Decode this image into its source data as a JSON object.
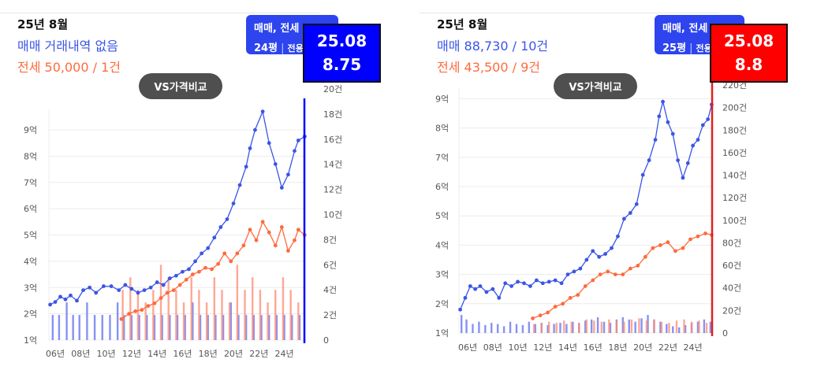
{
  "colors": {
    "trade": "#3b55e6",
    "trade_bar": "#5f6ef0",
    "jeonse": "#ff6a3d",
    "jeonse_bar": "#ff8a70",
    "grid": "#ececec"
  },
  "left_panel": {
    "period": "25년 8월",
    "trade_summary": "매매 거래내역 없음",
    "jeonse_summary": "전세 50,000 / 1건",
    "compare_button": "VS가격비교",
    "type_filter": {
      "line1": "매매, 전세",
      "size": "24평",
      "sep": "|",
      "area": "전용"
    },
    "tooltip": {
      "date": "25.08",
      "value": "8.75",
      "bg": "#0000ff",
      "line": "#0000ff"
    }
  },
  "right_panel": {
    "period": "25년 8월",
    "trade_summary": "매매 88,730 / 10건",
    "jeonse_summary": "전세 43,500 / 9건",
    "compare_button": "VS가격비교",
    "type_filter": {
      "line1": "매매, 전세",
      "size": "25평",
      "sep": "|",
      "area": "전용"
    },
    "tooltip": {
      "date": "25.08",
      "value": "8.8",
      "bg": "#ff0000",
      "line": "#e02020"
    }
  },
  "chart_data": [
    {
      "type": "line",
      "title": "",
      "x_ticks": [
        "06년",
        "08년",
        "10년",
        "12년",
        "14년",
        "16년",
        "18년",
        "20년",
        "22년",
        "24년"
      ],
      "xlim": [
        2005.5,
        2025.7
      ],
      "y_ticks": [
        "1억",
        "2억",
        "3억",
        "4억",
        "5억",
        "6억",
        "7억",
        "8억",
        "9억"
      ],
      "ylim": [
        1,
        9.6
      ],
      "y2_ticks": [
        "0",
        "2건",
        "4건",
        "6건",
        "8건",
        "10건",
        "12건",
        "14건",
        "16건",
        "18건",
        "20건"
      ],
      "y2lim": [
        0,
        20
      ],
      "series": [
        {
          "name": "매매",
          "kind": "line",
          "x": [
            2005.6,
            2006.0,
            2006.4,
            2006.8,
            2007.2,
            2007.7,
            2008.2,
            2008.7,
            2009.2,
            2009.8,
            2010.4,
            2011.0,
            2011.5,
            2012.0,
            2012.5,
            2013.0,
            2013.5,
            2014.0,
            2014.5,
            2015.0,
            2015.5,
            2016.0,
            2016.5,
            2017.0,
            2017.5,
            2018.0,
            2018.5,
            2019.0,
            2019.5,
            2020.0,
            2020.5,
            2021.0,
            2021.3,
            2021.7,
            2022.3,
            2022.8,
            2023.3,
            2023.8,
            2024.3,
            2024.8,
            2025.1,
            2025.6
          ],
          "y": [
            2.35,
            2.45,
            2.65,
            2.55,
            2.7,
            2.5,
            2.9,
            3.0,
            2.8,
            3.05,
            3.05,
            2.9,
            3.1,
            2.95,
            2.8,
            2.9,
            3.0,
            3.2,
            3.1,
            3.35,
            3.45,
            3.6,
            3.7,
            4.0,
            4.3,
            4.5,
            4.9,
            5.3,
            5.6,
            6.2,
            6.9,
            7.6,
            8.3,
            9.0,
            9.7,
            8.5,
            7.7,
            6.8,
            7.3,
            8.2,
            8.6,
            8.75
          ]
        },
        {
          "name": "전세",
          "kind": "line",
          "x": [
            2011.2,
            2011.8,
            2012.3,
            2012.8,
            2013.3,
            2013.8,
            2014.3,
            2014.8,
            2015.3,
            2015.8,
            2016.3,
            2016.8,
            2017.3,
            2017.8,
            2018.3,
            2018.8,
            2019.3,
            2019.8,
            2020.3,
            2020.8,
            2021.3,
            2021.8,
            2022.3,
            2022.8,
            2023.3,
            2023.8,
            2024.3,
            2024.8,
            2025.1,
            2025.6
          ],
          "y": [
            1.8,
            2.0,
            2.1,
            2.15,
            2.3,
            2.4,
            2.6,
            2.8,
            2.9,
            3.1,
            3.3,
            3.5,
            3.6,
            3.75,
            3.7,
            3.9,
            4.3,
            4.0,
            4.3,
            4.6,
            5.2,
            4.8,
            5.5,
            5.1,
            4.6,
            5.3,
            4.4,
            4.8,
            5.2,
            5.0
          ]
        },
        {
          "name": "매매 거래량",
          "kind": "bar",
          "x": [
            2005.8,
            2006.3,
            2006.9,
            2007.4,
            2007.9,
            2008.5,
            2009.1,
            2009.7,
            2010.3,
            2010.9,
            2011.4,
            2012.0,
            2012.6,
            2013.2,
            2013.8,
            2014.4,
            2015.0,
            2015.6,
            2016.2,
            2016.8,
            2017.4,
            2018.0,
            2018.6,
            2019.2,
            2019.8,
            2020.4,
            2021.0,
            2021.6,
            2022.2,
            2022.8,
            2023.4,
            2024.0,
            2024.6,
            2025.2
          ],
          "y": [
            2,
            2,
            3,
            2,
            2,
            3,
            2,
            2,
            2,
            3,
            2,
            2,
            2,
            2,
            2,
            2,
            2,
            2,
            2,
            3,
            2,
            2,
            2,
            2,
            3,
            2,
            2,
            2,
            2,
            2,
            2,
            2,
            2,
            2
          ]
        },
        {
          "name": "전세 거래량",
          "kind": "bar",
          "x": [
            2011.3,
            2011.9,
            2012.5,
            2013.1,
            2013.7,
            2014.3,
            2014.9,
            2015.5,
            2016.1,
            2016.7,
            2017.3,
            2017.9,
            2018.5,
            2019.1,
            2019.7,
            2020.3,
            2020.9,
            2021.5,
            2022.1,
            2022.7,
            2023.3,
            2023.9,
            2024.5,
            2025.1
          ],
          "y": [
            4,
            5,
            4,
            3,
            4,
            6,
            5,
            4,
            3,
            5,
            4,
            3,
            5,
            4,
            3,
            6,
            4,
            5,
            4,
            3,
            4,
            5,
            4,
            3
          ]
        }
      ]
    },
    {
      "type": "line",
      "title": "",
      "x_ticks": [
        "06년",
        "08년",
        "10년",
        "12년",
        "14년",
        "16년",
        "18년",
        "20년",
        "22년",
        "24년"
      ],
      "xlim": [
        2005.3,
        2025.6
      ],
      "y_ticks": [
        "1억",
        "2억",
        "3억",
        "4억",
        "5억",
        "6억",
        "7억",
        "8억",
        "9억"
      ],
      "ylim": [
        1,
        9.2
      ],
      "y2_ticks": [
        "0",
        "20건",
        "40건",
        "60건",
        "80건",
        "100건",
        "120건",
        "140건",
        "160건",
        "180건",
        "200건",
        "220건"
      ],
      "y2lim": [
        0,
        220
      ],
      "series": [
        {
          "name": "매매",
          "kind": "line",
          "x": [
            2005.4,
            2005.8,
            2006.2,
            2006.6,
            2007.0,
            2007.5,
            2008.0,
            2008.5,
            2009.0,
            2009.5,
            2010.0,
            2010.5,
            2011.0,
            2011.5,
            2012.0,
            2012.5,
            2013.0,
            2013.5,
            2014.0,
            2014.5,
            2015.0,
            2015.5,
            2016.0,
            2016.5,
            2017.0,
            2017.5,
            2018.0,
            2018.5,
            2019.0,
            2019.5,
            2020.0,
            2020.5,
            2021.0,
            2021.3,
            2021.6,
            2022.0,
            2022.4,
            2022.8,
            2023.2,
            2023.6,
            2024.0,
            2024.4,
            2024.8,
            2025.2,
            2025.5
          ],
          "y": [
            1.8,
            2.2,
            2.6,
            2.5,
            2.6,
            2.4,
            2.5,
            2.2,
            2.7,
            2.6,
            2.75,
            2.7,
            2.6,
            2.8,
            2.7,
            2.75,
            2.8,
            2.7,
            3.0,
            3.1,
            3.2,
            3.5,
            3.8,
            3.6,
            3.7,
            3.9,
            4.3,
            4.9,
            5.1,
            5.4,
            6.4,
            6.9,
            7.6,
            8.4,
            8.9,
            8.2,
            7.8,
            6.9,
            6.3,
            6.8,
            7.4,
            7.6,
            8.1,
            8.3,
            8.8
          ]
        },
        {
          "name": "전세",
          "kind": "line",
          "x": [
            2011.2,
            2011.8,
            2012.4,
            2013.0,
            2013.6,
            2014.2,
            2014.8,
            2015.4,
            2016.0,
            2016.6,
            2017.2,
            2017.8,
            2018.4,
            2019.0,
            2019.6,
            2020.2,
            2020.8,
            2021.4,
            2022.0,
            2022.6,
            2023.2,
            2023.8,
            2024.4,
            2025.0,
            2025.5
          ],
          "y": [
            1.5,
            1.6,
            1.7,
            1.9,
            2.0,
            2.2,
            2.3,
            2.6,
            2.8,
            3.0,
            3.1,
            3.0,
            3.0,
            3.2,
            3.3,
            3.6,
            3.9,
            4.0,
            4.1,
            3.8,
            3.9,
            4.2,
            4.3,
            4.4,
            4.35
          ]
        },
        {
          "name": "매매 거래량",
          "kind": "bar",
          "x": [
            2005.5,
            2005.9,
            2006.4,
            2006.9,
            2007.4,
            2007.9,
            2008.4,
            2008.9,
            2009.4,
            2009.9,
            2010.4,
            2010.9,
            2011.4,
            2011.9,
            2012.4,
            2012.9,
            2013.4,
            2013.9,
            2014.4,
            2014.9,
            2015.4,
            2015.9,
            2016.4,
            2016.9,
            2017.4,
            2017.9,
            2018.4,
            2018.9,
            2019.4,
            2019.9,
            2020.4,
            2020.9,
            2021.4,
            2021.9,
            2022.4,
            2022.9,
            2023.4,
            2023.9,
            2024.4,
            2024.9,
            2025.4
          ],
          "y": [
            16,
            12,
            8,
            10,
            7,
            9,
            8,
            6,
            10,
            8,
            7,
            10,
            8,
            9,
            7,
            8,
            9,
            8,
            10,
            9,
            11,
            12,
            14,
            10,
            9,
            12,
            14,
            12,
            10,
            13,
            16,
            12,
            10,
            8,
            6,
            5,
            7,
            9,
            10,
            12,
            10
          ]
        },
        {
          "name": "전세 거래량",
          "kind": "bar",
          "x": [
            2011.3,
            2011.9,
            2012.5,
            2013.1,
            2013.7,
            2014.3,
            2014.9,
            2015.5,
            2016.1,
            2016.7,
            2017.3,
            2017.9,
            2018.5,
            2019.1,
            2019.7,
            2020.3,
            2020.9,
            2021.5,
            2022.1,
            2022.7,
            2023.3,
            2023.9,
            2024.5,
            2025.1
          ],
          "y": [
            8,
            9,
            10,
            9,
            11,
            10,
            9,
            12,
            11,
            10,
            12,
            11,
            10,
            12,
            13,
            11,
            12,
            10,
            9,
            11,
            12,
            10,
            11,
            9
          ]
        }
      ]
    }
  ]
}
